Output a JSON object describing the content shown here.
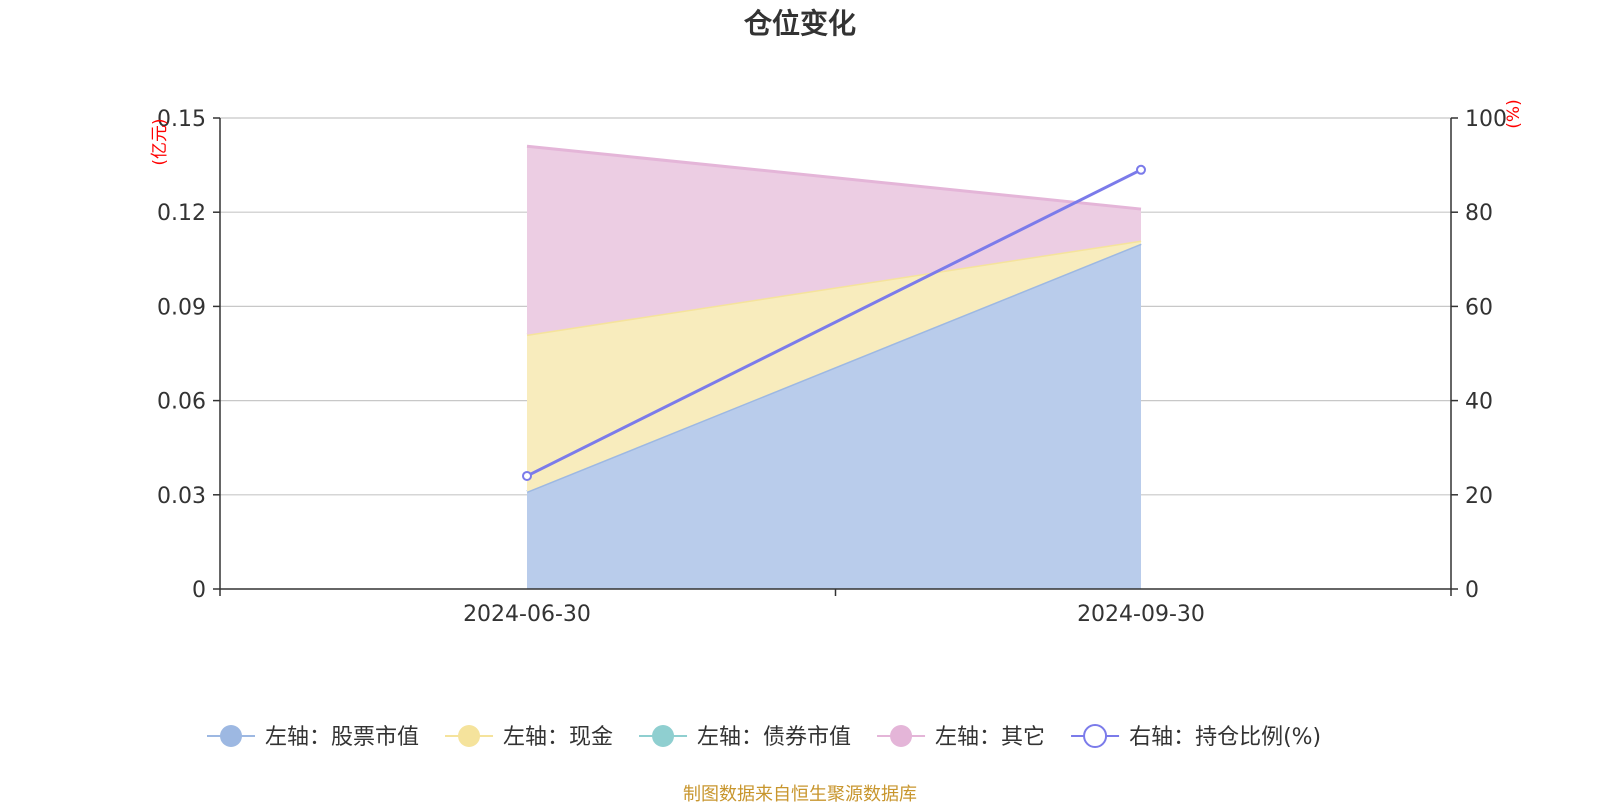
{
  "title": "仓位变化",
  "footer": "制图数据来自恒生聚源数据库",
  "chart_data": {
    "type": "area",
    "title": "仓位变化",
    "categories": [
      "2024-06-30",
      "2024-09-30"
    ],
    "y_left": {
      "unit": "(亿元)",
      "ticks": [
        "0",
        "0.03",
        "0.06",
        "0.09",
        "0.12",
        "0.15"
      ],
      "ylim": [
        0,
        0.15
      ]
    },
    "y_right": {
      "unit": "(%)",
      "ticks": [
        "0",
        "20",
        "40",
        "60",
        "80",
        "100"
      ],
      "ylim": [
        0,
        100
      ]
    },
    "series": [
      {
        "name": "左轴：股票市值",
        "axis": "left",
        "kind": "stacked-area",
        "values": [
          0.031,
          0.11
        ],
        "color": "#9db8e2",
        "fill": "#b9cceb"
      },
      {
        "name": "左轴：现金",
        "axis": "left",
        "kind": "stacked-area",
        "values": [
          0.05,
          0.001
        ],
        "color": "#f5e39c",
        "fill": "#f8ecbd"
      },
      {
        "name": "左轴：债券市值",
        "axis": "left",
        "kind": "stacked-area",
        "values": [
          0,
          0
        ],
        "color": "#8fcfd0",
        "fill": "#b8e2e2"
      },
      {
        "name": "左轴：其它",
        "axis": "left",
        "kind": "stacked-area",
        "values": [
          0.06,
          0.01
        ],
        "color": "#e4b5d8",
        "fill": "#eccde3"
      },
      {
        "name": "右轴：持仓比例(%)",
        "axis": "right",
        "kind": "line",
        "values": [
          24,
          89
        ],
        "color": "#7b7bea"
      }
    ],
    "grid": true,
    "legend_position": "bottom"
  }
}
